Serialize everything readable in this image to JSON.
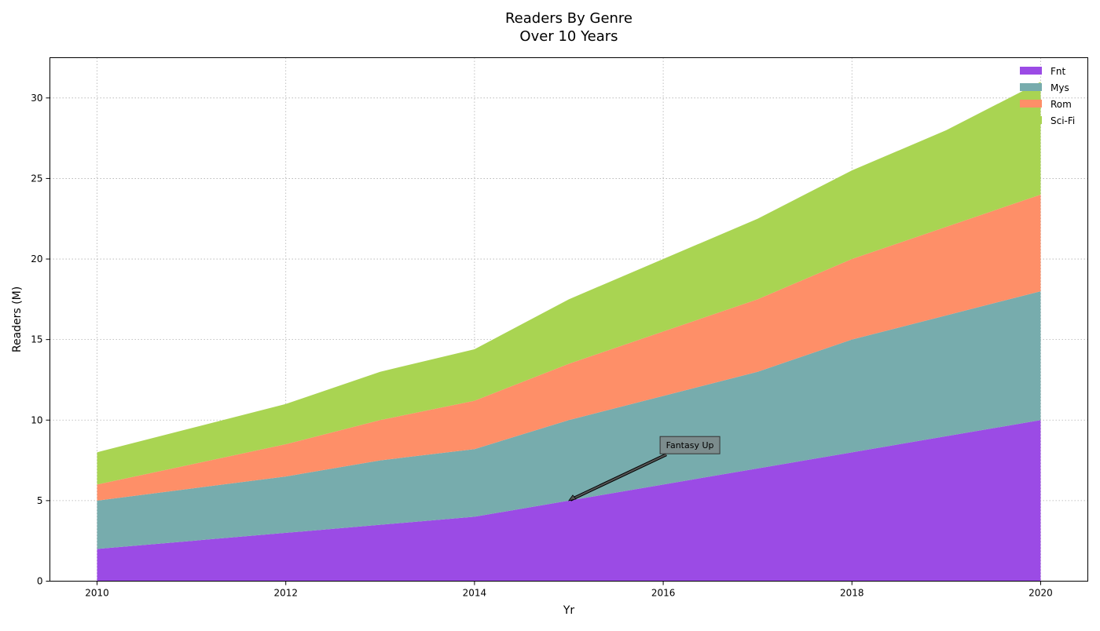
{
  "chart_data": {
    "type": "area",
    "stacked": true,
    "title": "Readers By Genre",
    "subtitle": "Over 10 Years",
    "xlabel": "Yr",
    "ylabel": "Readers (M)",
    "x": [
      2010,
      2011,
      2012,
      2013,
      2014,
      2015,
      2016,
      2017,
      2018,
      2019,
      2020
    ],
    "xlim": [
      2009.5,
      2020.5
    ],
    "ylim": [
      0,
      32.5
    ],
    "xticks": [
      "2010",
      "2012",
      "2014",
      "2016",
      "2018",
      "2020"
    ],
    "yticks": [
      "0",
      "5",
      "10",
      "15",
      "20",
      "25",
      "30"
    ],
    "grid": true,
    "legend_position": "top-right",
    "series": [
      {
        "name": "Fnt",
        "color": "#9b4be5",
        "values": [
          2,
          2.5,
          3,
          3.5,
          4,
          5,
          6,
          7,
          8,
          9,
          10
        ]
      },
      {
        "name": "Mys",
        "color": "#77acad",
        "values": [
          3,
          3.25,
          3.5,
          4,
          4.2,
          5,
          5.5,
          6,
          7,
          7.5,
          8
        ]
      },
      {
        "name": "Rom",
        "color": "#fe8f68",
        "values": [
          1,
          1.5,
          2,
          2.5,
          3,
          3.5,
          4,
          4.5,
          5,
          5.5,
          6
        ]
      },
      {
        "name": "Sci-Fi",
        "color": "#a9d452",
        "values": [
          2,
          2.25,
          2.5,
          3,
          3.2,
          4,
          4.5,
          5,
          5.5,
          6,
          7
        ]
      }
    ],
    "annotations": [
      {
        "text": "Fantasy Up",
        "x": 2015,
        "y": 5
      }
    ]
  }
}
